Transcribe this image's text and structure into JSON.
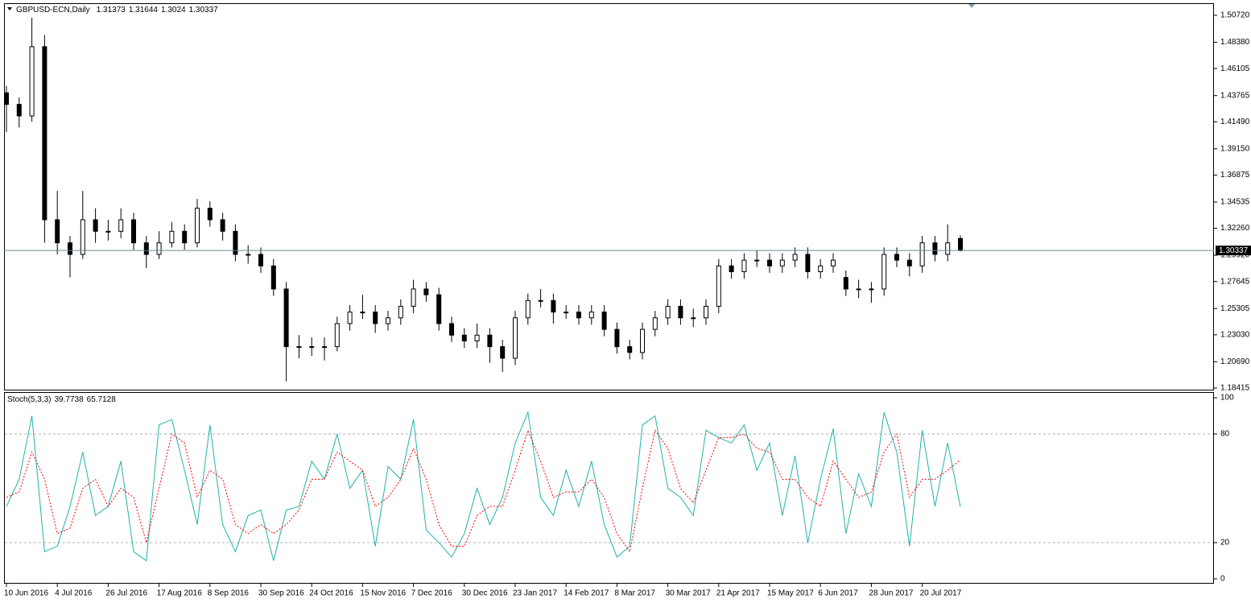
{
  "chart_data": [
    {
      "type": "candlestick",
      "title": "GBPUSD-ECN,Daily",
      "categories": [
        "10 Jun 2016",
        null,
        null,
        null,
        "4 Jul 2016",
        null,
        null,
        null,
        "26 Jul 2016",
        null,
        null,
        null,
        "17 Aug 2016",
        null,
        null,
        null,
        "8 Sep 2016",
        null,
        null,
        null,
        "30 Sep 2016",
        null,
        null,
        null,
        "24 Oct 2016",
        null,
        null,
        null,
        "15 Nov 2016",
        null,
        null,
        null,
        "7 Dec 2016",
        null,
        null,
        null,
        "30 Dec 2016",
        null,
        null,
        null,
        "23 Jan 2017",
        null,
        null,
        null,
        "14 Feb 2017",
        null,
        null,
        null,
        "8 Mar 2017",
        null,
        null,
        null,
        "30 Mar 2017",
        null,
        null,
        null,
        "21 Apr 2017",
        null,
        null,
        null,
        "15 May 2017",
        null,
        null,
        null,
        "6 Jun 2017",
        null,
        null,
        null,
        "28 Jun 2017",
        null,
        null,
        null,
        "20 Jul 2017",
        null,
        null,
        null
      ],
      "open": [
        1.44,
        1.43,
        1.42,
        1.48,
        1.33,
        1.31,
        1.3,
        1.33,
        1.32,
        1.32,
        1.33,
        1.31,
        1.3,
        1.31,
        1.32,
        1.31,
        1.34,
        1.33,
        1.32,
        1.3,
        1.3,
        1.29,
        1.27,
        1.22,
        1.22,
        1.22,
        1.22,
        1.24,
        1.25,
        1.25,
        1.24,
        1.245,
        1.255,
        1.27,
        1.265,
        1.24,
        1.23,
        1.225,
        1.23,
        1.22,
        1.21,
        1.245,
        1.26,
        1.26,
        1.25,
        1.25,
        1.245,
        1.25,
        1.235,
        1.22,
        1.215,
        1.235,
        1.245,
        1.255,
        1.245,
        1.245,
        1.255,
        1.29,
        1.285,
        1.295,
        1.295,
        1.29,
        1.295,
        1.3,
        1.285,
        1.29,
        1.28,
        1.27,
        1.27,
        1.27,
        1.3,
        1.295,
        1.29,
        1.31,
        1.3,
        1.31373
      ],
      "high": [
        1.446,
        1.436,
        1.505,
        1.49,
        1.355,
        1.316,
        1.355,
        1.34,
        1.33,
        1.34,
        1.336,
        1.316,
        1.32,
        1.328,
        1.326,
        1.348,
        1.346,
        1.336,
        1.326,
        1.308,
        1.306,
        1.296,
        1.276,
        1.23,
        1.228,
        1.228,
        1.246,
        1.256,
        1.265,
        1.256,
        1.251,
        1.261,
        1.278,
        1.276,
        1.271,
        1.246,
        1.236,
        1.24,
        1.236,
        1.226,
        1.251,
        1.266,
        1.27,
        1.266,
        1.256,
        1.256,
        1.256,
        1.256,
        1.241,
        1.226,
        1.241,
        1.251,
        1.261,
        1.261,
        1.253,
        1.261,
        1.296,
        1.296,
        1.301,
        1.303,
        1.301,
        1.301,
        1.306,
        1.306,
        1.296,
        1.301,
        1.286,
        1.278,
        1.276,
        1.306,
        1.306,
        1.301,
        1.316,
        1.316,
        1.326,
        1.31644
      ],
      "low": [
        1.406,
        1.41,
        1.415,
        1.31,
        1.3,
        1.28,
        1.296,
        1.31,
        1.312,
        1.314,
        1.304,
        1.288,
        1.296,
        1.306,
        1.304,
        1.306,
        1.324,
        1.312,
        1.294,
        1.292,
        1.284,
        1.264,
        1.19,
        1.21,
        1.212,
        1.208,
        1.216,
        1.234,
        1.244,
        1.232,
        1.234,
        1.239,
        1.249,
        1.259,
        1.234,
        1.224,
        1.219,
        1.219,
        1.206,
        1.198,
        1.204,
        1.239,
        1.254,
        1.24,
        1.244,
        1.239,
        1.239,
        1.229,
        1.214,
        1.209,
        1.209,
        1.229,
        1.239,
        1.239,
        1.237,
        1.239,
        1.249,
        1.279,
        1.279,
        1.289,
        1.284,
        1.284,
        1.289,
        1.279,
        1.279,
        1.284,
        1.264,
        1.262,
        1.258,
        1.264,
        1.289,
        1.281,
        1.284,
        1.294,
        1.294,
        1.3024
      ],
      "close": [
        1.43,
        1.42,
        1.48,
        1.33,
        1.31,
        1.3,
        1.33,
        1.32,
        1.32,
        1.33,
        1.31,
        1.3,
        1.31,
        1.32,
        1.31,
        1.34,
        1.33,
        1.32,
        1.3,
        1.3,
        1.29,
        1.27,
        1.22,
        1.22,
        1.22,
        1.22,
        1.24,
        1.25,
        1.25,
        1.24,
        1.245,
        1.255,
        1.27,
        1.265,
        1.24,
        1.23,
        1.225,
        1.23,
        1.22,
        1.21,
        1.245,
        1.26,
        1.26,
        1.25,
        1.25,
        1.245,
        1.25,
        1.235,
        1.22,
        1.215,
        1.235,
        1.245,
        1.255,
        1.245,
        1.245,
        1.255,
        1.29,
        1.285,
        1.295,
        1.295,
        1.29,
        1.295,
        1.3,
        1.285,
        1.29,
        1.295,
        1.27,
        1.27,
        1.27,
        1.3,
        1.295,
        1.29,
        1.31,
        1.3,
        1.31,
        1.30337
      ],
      "ylim": [
        1.18275,
        1.51697
      ],
      "yticks": [
        {
          "value": 1.5072,
          "label": "1.50720"
        },
        {
          "value": 1.4838,
          "label": "1.48380"
        },
        {
          "value": 1.46105,
          "label": "1.46105"
        },
        {
          "value": 1.43765,
          "label": "1.43765"
        },
        {
          "value": 1.4149,
          "label": "1.41490"
        },
        {
          "value": 1.3915,
          "label": "1.39150"
        },
        {
          "value": 1.36875,
          "label": "1.36875"
        },
        {
          "value": 1.34535,
          "label": "1.34535"
        },
        {
          "value": 1.3226,
          "label": "1.32260"
        },
        {
          "value": 1.2992,
          "label": "1.29920"
        },
        {
          "value": 1.27645,
          "label": "1.27645"
        },
        {
          "value": 1.25305,
          "label": "1.25305"
        },
        {
          "value": 1.2303,
          "label": "1.23030"
        },
        {
          "value": 1.2069,
          "label": "1.20690"
        },
        {
          "value": 1.18415,
          "label": "1.18415"
        }
      ],
      "up_color": "#ffffff",
      "down_color": "#000000",
      "price_line_color": "#6f8797"
    },
    {
      "type": "line",
      "title": "Stoch(5,3,3)",
      "series": [
        {
          "color": "#20b2aa",
          "style": "solid",
          "values": [
            40,
            55,
            90,
            15,
            18,
            40,
            70,
            35,
            40,
            65,
            15,
            10,
            85,
            88,
            60,
            30,
            85,
            30,
            15,
            35,
            38,
            10,
            38,
            40,
            65,
            55,
            80,
            50,
            60,
            18,
            62,
            55,
            88,
            27,
            20,
            12,
            25,
            50,
            30,
            45,
            75,
            92,
            45,
            35,
            60,
            40,
            65,
            30,
            12,
            18,
            85,
            90,
            50,
            45,
            35,
            82,
            78,
            75,
            85,
            60,
            75,
            35,
            68,
            20,
            55,
            83,
            25,
            58,
            40,
            92,
            70,
            18,
            82,
            40,
            75,
            39.7738
          ]
        },
        {
          "color": "#ff0000",
          "style": "dashed",
          "values": [
            45,
            48,
            70,
            55,
            25,
            28,
            50,
            55,
            40,
            50,
            45,
            20,
            50,
            80,
            75,
            45,
            60,
            55,
            30,
            25,
            30,
            25,
            30,
            38,
            55,
            55,
            70,
            65,
            60,
            40,
            45,
            55,
            72,
            55,
            30,
            18,
            18,
            35,
            40,
            40,
            60,
            82,
            65,
            45,
            48,
            48,
            55,
            45,
            25,
            15,
            50,
            82,
            72,
            50,
            42,
            60,
            78,
            78,
            80,
            72,
            70,
            55,
            55,
            45,
            40,
            65,
            55,
            45,
            48,
            70,
            80,
            45,
            55,
            55,
            60,
            65.7128
          ]
        }
      ],
      "ylim": [
        -2.2,
        102.7
      ],
      "yticks": [
        100,
        80,
        20,
        0
      ],
      "grid": true
    }
  ]
}
